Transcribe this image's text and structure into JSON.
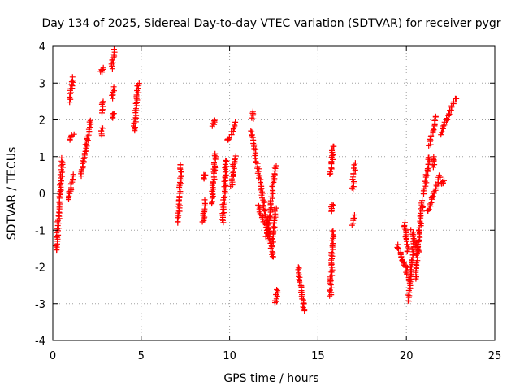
{
  "chart_data": {
    "type": "scatter",
    "title": "Day 134 of 2025, Sidereal Day-to-day VTEC variation (SDTVAR) for receiver pygr",
    "xlabel": "GPS time / hours",
    "ylabel": "SDTVAR / TECUs",
    "xlim": [
      0,
      25
    ],
    "ylim": [
      -4,
      4
    ],
    "x_ticks": [
      "0",
      "5",
      "10",
      "15",
      "20",
      "25"
    ],
    "y_ticks": [
      "-4",
      "-3",
      "-2",
      "-1",
      "0",
      "1",
      "2",
      "3",
      "4"
    ],
    "grid": true,
    "marker": "+",
    "colors": {
      "points": "#ff0000",
      "grid": "#a0a0a0",
      "axes": "#000000"
    },
    "series": [
      {
        "name": "SDTVAR",
        "segments": [
          {
            "x0": 0.2,
            "x1": 0.55,
            "y0": -1.55,
            "y1": 0.95
          },
          {
            "x0": 0.9,
            "x1": 1.15,
            "y0": -0.15,
            "y1": 0.5
          },
          {
            "x0": 0.95,
            "x1": 1.15,
            "y0": 1.45,
            "y1": 1.62
          },
          {
            "x0": 0.95,
            "x1": 1.15,
            "y0": 2.5,
            "y1": 3.15
          },
          {
            "x0": 1.6,
            "x1": 2.15,
            "y0": 0.5,
            "y1": 2.0
          },
          {
            "x0": 2.75,
            "x1": 2.8,
            "y0": 1.6,
            "y1": 1.8
          },
          {
            "x0": 2.75,
            "x1": 2.85,
            "y0": 2.2,
            "y1": 2.5
          },
          {
            "x0": 2.75,
            "x1": 2.85,
            "y0": 3.3,
            "y1": 3.4
          },
          {
            "x0": 3.35,
            "x1": 3.45,
            "y0": 2.05,
            "y1": 2.2
          },
          {
            "x0": 3.35,
            "x1": 3.45,
            "y0": 2.6,
            "y1": 2.9
          },
          {
            "x0": 3.35,
            "x1": 3.45,
            "y0": 3.4,
            "y1": 3.9
          },
          {
            "x0": 4.6,
            "x1": 4.85,
            "y0": 1.7,
            "y1": 3.0
          },
          {
            "x0": 7.1,
            "x1": 7.25,
            "y0": -0.8,
            "y1": 0.8
          },
          {
            "x0": 8.5,
            "x1": 8.6,
            "y0": -0.8,
            "y1": -0.2
          },
          {
            "x0": 8.5,
            "x1": 8.6,
            "y0": 0.4,
            "y1": 0.5
          },
          {
            "x0": 9.0,
            "x1": 9.2,
            "y0": -0.3,
            "y1": 1.1
          },
          {
            "x0": 9.0,
            "x1": 9.2,
            "y0": 1.85,
            "y1": 1.98
          },
          {
            "x0": 9.6,
            "x1": 9.8,
            "y0": -0.8,
            "y1": 0.9
          },
          {
            "x0": 9.9,
            "x1": 9.95,
            "y0": 1.45,
            "y1": 1.5
          },
          {
            "x0": 10.1,
            "x1": 10.3,
            "y0": 0.2,
            "y1": 1.0
          },
          {
            "x0": 10.1,
            "x1": 10.3,
            "y0": 1.6,
            "y1": 1.95
          },
          {
            "x0": 11.3,
            "x1": 11.35,
            "y0": 2.0,
            "y1": 2.25
          },
          {
            "x0": 11.25,
            "x1": 12.45,
            "y0": 1.7,
            "y1": -1.75
          },
          {
            "x0": 11.6,
            "x1": 12.2,
            "y0": -0.3,
            "y1": -1.1
          },
          {
            "x0": 12.1,
            "x1": 12.6,
            "y0": -1.2,
            "y1": 0.75
          },
          {
            "x0": 12.4,
            "x1": 12.6,
            "y0": -1.4,
            "y1": -0.4
          },
          {
            "x0": 12.6,
            "x1": 12.7,
            "y0": -3.0,
            "y1": -2.6
          },
          {
            "x0": 13.9,
            "x1": 14.2,
            "y0": -2.0,
            "y1": -3.2
          },
          {
            "x0": 15.7,
            "x1": 15.85,
            "y0": 0.5,
            "y1": 1.3
          },
          {
            "x0": 15.7,
            "x1": 15.85,
            "y0": -0.5,
            "y1": -0.3
          },
          {
            "x0": 15.7,
            "x1": 15.85,
            "y0": -2.8,
            "y1": -1.0
          },
          {
            "x0": 16.95,
            "x1": 17.05,
            "y0": -0.85,
            "y1": -0.6
          },
          {
            "x0": 16.95,
            "x1": 17.1,
            "y0": 0.1,
            "y1": 0.8
          },
          {
            "x0": 19.5,
            "x1": 20.2,
            "y0": -1.4,
            "y1": -2.4
          },
          {
            "x0": 19.7,
            "x1": 20.0,
            "y0": -1.8,
            "y1": -2.0
          },
          {
            "x0": 19.9,
            "x1": 20.1,
            "y0": -0.8,
            "y1": -1.6
          },
          {
            "x0": 20.1,
            "x1": 20.4,
            "y0": -2.95,
            "y1": -1.3
          },
          {
            "x0": 20.3,
            "x1": 20.7,
            "y0": -1.0,
            "y1": -1.6
          },
          {
            "x0": 20.5,
            "x1": 20.9,
            "y0": -2.3,
            "y1": -0.2
          },
          {
            "x0": 21.0,
            "x1": 21.3,
            "y0": 0.0,
            "y1": 1.0
          },
          {
            "x0": 21.2,
            "x1": 21.9,
            "y0": -0.5,
            "y1": 0.5
          },
          {
            "x0": 21.3,
            "x1": 21.7,
            "y0": 1.3,
            "y1": 2.1
          },
          {
            "x0": 21.5,
            "x1": 21.6,
            "y0": 0.7,
            "y1": 1.0
          },
          {
            "x0": 22.0,
            "x1": 22.1,
            "y0": 0.25,
            "y1": 0.35
          },
          {
            "x0": 21.9,
            "x1": 22.8,
            "y0": 1.6,
            "y1": 2.6
          }
        ]
      }
    ]
  }
}
